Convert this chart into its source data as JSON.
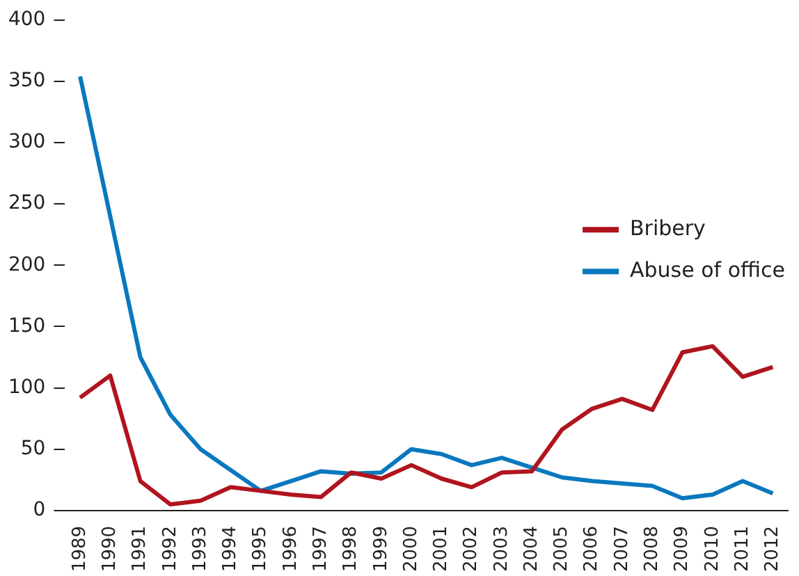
{
  "chart_data": {
    "type": "line",
    "categories": [
      "1989",
      "1990",
      "1991",
      "1992",
      "1993",
      "1994",
      "1995",
      "1996",
      "1997",
      "1998",
      "1999",
      "2000",
      "2001",
      "2002",
      "2003",
      "2004",
      "2005",
      "2006",
      "2007",
      "2008",
      "2009",
      "2010",
      "2011",
      "2012"
    ],
    "series": [
      {
        "name": "Bribery",
        "color": "#b0141e",
        "values": [
          92,
          110,
          24,
          5,
          8,
          19,
          16,
          13,
          11,
          31,
          26,
          37,
          26,
          19,
          31,
          32,
          66,
          83,
          91,
          82,
          129,
          134,
          109,
          117
        ]
      },
      {
        "name": "Abuse of office",
        "color": "#0a78be",
        "values": [
          354,
          240,
          125,
          78,
          50,
          33,
          16,
          24,
          32,
          30,
          31,
          50,
          46,
          37,
          43,
          35,
          27,
          24,
          22,
          20,
          10,
          13,
          24,
          14
        ]
      }
    ],
    "ylim": [
      0,
      400
    ],
    "yticks": [
      0,
      50,
      100,
      150,
      200,
      250,
      300,
      350,
      400
    ],
    "grid": false,
    "legend": "right",
    "marker": "none",
    "line_style": "solid"
  }
}
